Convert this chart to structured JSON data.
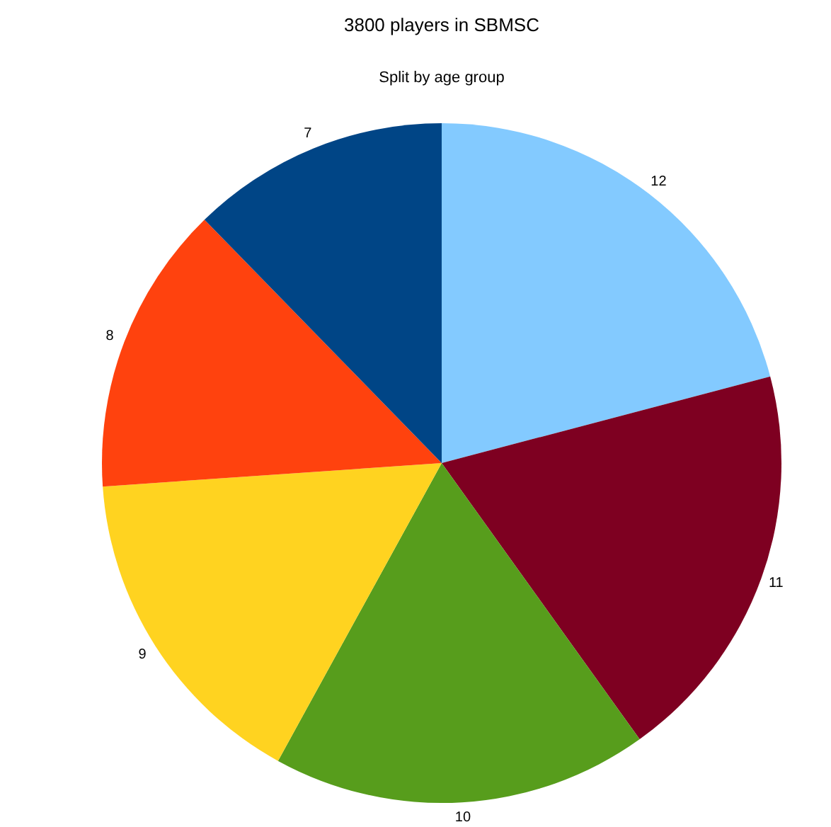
{
  "chart_data": {
    "type": "pie",
    "title": "3800 players in SBMSC",
    "subtitle": "Split by age group",
    "categories": [
      "12",
      "11",
      "10",
      "9",
      "8",
      "7"
    ],
    "values": [
      20.9,
      19.2,
      17.9,
      15.9,
      13.8,
      12.3
    ],
    "colors": [
      "#83caff",
      "#7e0021",
      "#579d1c",
      "#ffd320",
      "#ff420e",
      "#004586"
    ],
    "legend": false
  }
}
